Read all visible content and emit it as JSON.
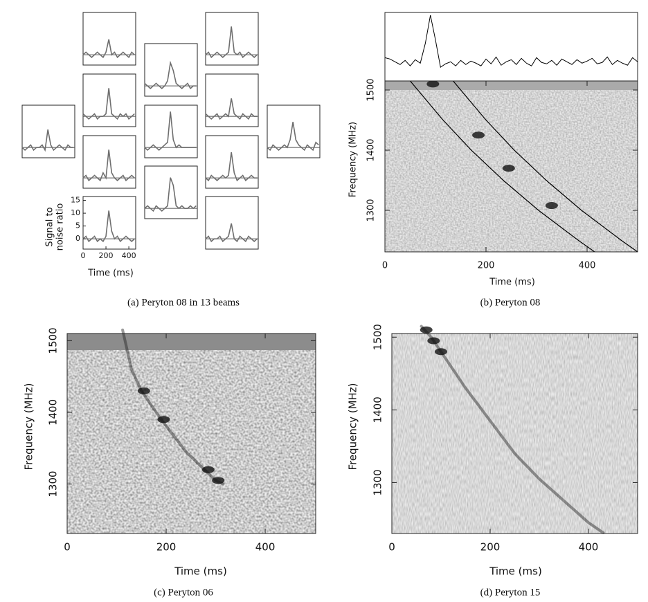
{
  "chart_data": [
    {
      "type": "line",
      "caption": "(a) Peryton 08 in 13 beams",
      "xlabel": "Time (ms)",
      "ylabel": [
        "Signal to",
        "noise ratio"
      ],
      "color": "#6e6e6e",
      "xlim": [
        0,
        460
      ],
      "ylim": [
        -4,
        16.5
      ],
      "xticks": [
        0,
        200,
        400
      ],
      "yticks": [
        0,
        5,
        10,
        15
      ],
      "x": [
        0,
        25,
        50,
        75,
        100,
        125,
        150,
        175,
        200,
        225,
        250,
        275,
        300,
        325,
        350,
        375,
        400,
        425,
        450
      ],
      "series": [
        {
          "values": [
            0,
            -1,
            0,
            1,
            -1,
            0,
            0,
            1,
            -1,
            7,
            1,
            -1,
            0,
            1,
            0,
            -1,
            1,
            0,
            0
          ]
        },
        {
          "values": [
            0,
            1,
            0,
            -1,
            0,
            1,
            0,
            -1,
            1,
            6,
            0,
            1,
            -1,
            0,
            1,
            0,
            -1,
            1,
            0
          ]
        },
        {
          "values": [
            1,
            0,
            -1,
            0,
            1,
            -1,
            0,
            0,
            1,
            11,
            1,
            0,
            -1,
            1,
            0,
            1,
            -1,
            0,
            1
          ]
        },
        {
          "values": [
            0,
            1,
            -1,
            0,
            1,
            0,
            -1,
            2,
            0,
            11,
            2,
            0,
            -1,
            0,
            1,
            -1,
            0,
            1,
            0
          ]
        },
        {
          "values": [
            0,
            1,
            -1,
            0,
            1,
            -1,
            0,
            -1,
            1,
            11,
            3,
            0,
            1,
            -1,
            0,
            1,
            0,
            -1,
            0
          ]
        },
        {
          "values": [
            1,
            0,
            -1,
            0,
            1,
            0,
            -1,
            0,
            2,
            9,
            6,
            1,
            0,
            -1,
            0,
            1,
            -1,
            0,
            0
          ]
        },
        {
          "values": [
            0,
            -1,
            0,
            1,
            0,
            -1,
            0,
            1,
            2,
            14,
            3,
            0,
            1,
            0,
            0,
            0,
            0,
            0,
            0
          ]
        },
        {
          "values": [
            0,
            1,
            0,
            -1,
            1,
            0,
            -1,
            0,
            1,
            12,
            9,
            1,
            0,
            1,
            0,
            0,
            1,
            0,
            1
          ]
        },
        {
          "values": [
            0,
            1,
            -1,
            0,
            1,
            0,
            -1,
            0,
            1,
            11,
            1,
            0,
            1,
            -1,
            0,
            1,
            0,
            -1,
            0
          ]
        },
        {
          "values": [
            1,
            0,
            -1,
            0,
            1,
            -1,
            0,
            1,
            0,
            7,
            1,
            0,
            -1,
            1,
            0,
            -1,
            1,
            0,
            0
          ]
        },
        {
          "values": [
            0,
            -1,
            1,
            0,
            -1,
            0,
            1,
            0,
            1,
            10,
            2,
            -1,
            0,
            1,
            -1,
            0,
            1,
            0,
            0
          ]
        },
        {
          "values": [
            0,
            1,
            -1,
            0,
            0,
            1,
            -1,
            0,
            1,
            6,
            0,
            -1,
            1,
            0,
            -1,
            1,
            0,
            -1,
            0
          ]
        },
        {
          "values": [
            0,
            -1,
            1,
            0,
            -1,
            0,
            1,
            0,
            3,
            10,
            3,
            1,
            0,
            -1,
            1,
            0,
            -1,
            2,
            1
          ]
        }
      ]
    },
    {
      "type": "waterfall",
      "caption": "(b) Peryton 08",
      "xlabel": "Time (ms)",
      "ylabel": "Frequency (MHz)",
      "xlim": [
        0,
        500
      ],
      "ylim": [
        1231,
        1515
      ],
      "xticks": [
        0,
        200,
        400
      ],
      "yticks": [
        1300,
        1400,
        1500
      ],
      "profile": {
        "ylim": [
          0,
          10
        ],
        "x": [
          0,
          10,
          20,
          30,
          40,
          50,
          60,
          70,
          80,
          90,
          100,
          110,
          120,
          130,
          140,
          150,
          160,
          170,
          180,
          190,
          200,
          210,
          220,
          230,
          240,
          250,
          260,
          270,
          280,
          290,
          300,
          310,
          320,
          330,
          340,
          350,
          360,
          370,
          380,
          390,
          400,
          410,
          420,
          430,
          440,
          450,
          460,
          470,
          480,
          490,
          500
        ],
        "values": [
          3.4,
          3.2,
          2.8,
          2.4,
          3.0,
          2.2,
          3.1,
          2.6,
          5.5,
          9.6,
          6.0,
          2.0,
          2.5,
          2.8,
          2.2,
          3.0,
          2.4,
          2.9,
          2.6,
          2.2,
          3.2,
          2.5,
          3.5,
          2.3,
          2.8,
          3.1,
          2.4,
          3.3,
          2.6,
          2.2,
          3.4,
          2.7,
          2.5,
          3.0,
          2.3,
          3.2,
          2.8,
          2.4,
          3.1,
          2.6,
          2.9,
          3.3,
          2.5,
          2.7,
          3.5,
          2.4,
          3.0,
          2.6,
          2.3,
          3.4,
          2.8
        ]
      },
      "lines": [
        {
          "x": [
            50,
            115,
            171,
            234,
            304,
            383,
            415
          ],
          "y": [
            1515,
            1450,
            1400,
            1350,
            1300,
            1250,
            1231
          ]
        },
        {
          "x": [
            135,
            200,
            256,
            319,
            389,
            468,
            500
          ],
          "y": [
            1515,
            1450,
            1400,
            1350,
            1300,
            1250,
            1231
          ]
        }
      ],
      "bursts": {
        "x": [
          95,
          185,
          245,
          330
        ],
        "y": [
          1510,
          1425,
          1370,
          1308
        ]
      }
    },
    {
      "type": "waterfall",
      "caption": "(c) Peryton 06",
      "xlabel": "Time (ms)",
      "ylabel": "Frequency (MHz)",
      "xlim": [
        0,
        502
      ],
      "ylim": [
        1231,
        1510
      ],
      "xticks": [
        0,
        200,
        400
      ],
      "yticks": [
        1300,
        1400,
        1500
      ],
      "track": {
        "x": [
          112,
          130,
          150,
          190,
          240,
          270,
          300,
          315
        ],
        "y": [
          1515,
          1460,
          1430,
          1390,
          1345,
          1325,
          1305,
          1300
        ]
      },
      "bursts": {
        "x": [
          155,
          195,
          285,
          305
        ],
        "y": [
          1430,
          1390,
          1320,
          1305
        ]
      }
    },
    {
      "type": "waterfall",
      "caption": "(d) Peryton 15",
      "xlabel": "Time (ms)",
      "ylabel": "Frequency (MHz)",
      "xlim": [
        0,
        500
      ],
      "ylim": [
        1230,
        1505
      ],
      "xticks": [
        0,
        200,
        400
      ],
      "yticks": [
        1300,
        1400,
        1500
      ],
      "track": {
        "x": [
          60,
          80,
          100,
          150,
          200,
          250,
          300,
          350,
          400,
          430
        ],
        "y": [
          1515,
          1500,
          1480,
          1430,
          1385,
          1340,
          1305,
          1275,
          1245,
          1231
        ]
      },
      "bursts": {
        "x": [
          70,
          85,
          100
        ],
        "y": [
          1510,
          1495,
          1480
        ]
      }
    }
  ]
}
